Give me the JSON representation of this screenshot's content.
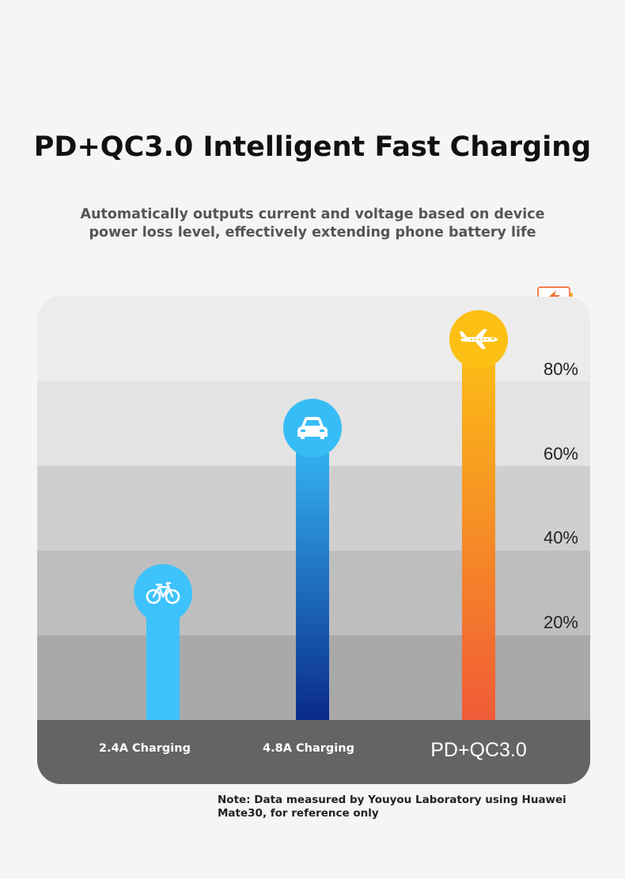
{
  "header": {
    "title": "PD+QC3.0 Intelligent Fast Charging",
    "subtitle": "Automatically outputs current and voltage based on device power loss level, effectively extending phone battery life"
  },
  "chart_data": {
    "type": "bar",
    "categories": [
      "2.4A Charging",
      "4.8A Charging",
      "PD+QC3.0"
    ],
    "values": [
      30,
      69,
      90
    ],
    "ylim": [
      0,
      100
    ],
    "yticks": [
      "20%",
      "40%",
      "60%",
      "80%"
    ],
    "ytick_values": [
      20,
      40,
      60,
      80
    ],
    "icons": [
      "bicycle-icon",
      "car-icon",
      "airplane-icon"
    ],
    "colors": {
      "bar1": "#3ec2fb",
      "bar2_top": "#37bdf6",
      "bar2_bottom": "#0a2b8b",
      "bar3_top": "#fcc015",
      "bar3_bottom": "#f05b37",
      "band_colors": [
        "#a9a9a9",
        "#bebebe",
        "#cfcfcf",
        "#e3e3e3",
        "#ececec"
      ],
      "footer": "#646464"
    }
  },
  "footnote": "Note: Data measured by Youyou Laboratory using Huawei Mate30, for reference only"
}
